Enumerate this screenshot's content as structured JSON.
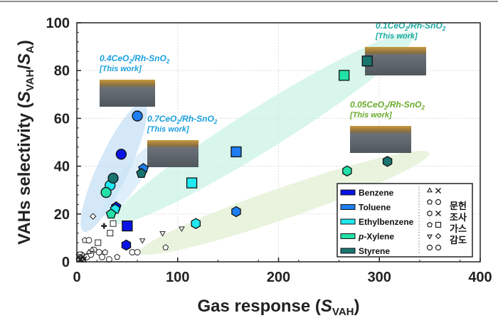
{
  "chart_data": {
    "type": "scatter",
    "xlabel": "Gas response (S_VAH)",
    "xlabel_main": "Gas response (",
    "xlabel_sym": "S",
    "xlabel_sub": "VAH",
    "xlabel_close": ")",
    "ylabel_main": "VAHs selectivity (",
    "ylabel_sym1": "S",
    "ylabel_sub1": "VAH",
    "ylabel_slash": "/",
    "ylabel_sym2": "S",
    "ylabel_sub2": "A",
    "ylabel_close": ")",
    "xlim": [
      0,
      400
    ],
    "ylim": [
      0,
      100
    ],
    "xticks": [
      "0",
      "100",
      "200",
      "300",
      "400"
    ],
    "yticks": [
      "0",
      "20",
      "40",
      "60",
      "80",
      "100"
    ],
    "grid": true,
    "gases": [
      {
        "name": "Benzene",
        "color": "#0a14e6"
      },
      {
        "name": "Toluene",
        "color": "#1e7ef0"
      },
      {
        "name": "Ethylbenzene",
        "color": "#1ee8f0"
      },
      {
        "name": "p-Xylene",
        "color": "#22e0a8"
      },
      {
        "name": "Styrene",
        "color": "#1a7470"
      }
    ],
    "legend_italic_prefix": "p",
    "legend_rest": "-Xylene",
    "literature_label": [
      "문헌",
      "조사",
      "가스",
      "감도"
    ],
    "series": [
      {
        "name": "0.4CeO2/Rh-SnO2 [This work]",
        "label1": "0.4CeO",
        "label2": "/Rh-SnO",
        "label3": "[This work]",
        "color": "#1aa0e0",
        "marker": "circle",
        "points": [
          [
            44,
            45
          ],
          [
            60,
            61
          ],
          [
            33,
            32
          ],
          [
            29,
            29
          ],
          [
            36,
            35
          ]
        ]
      },
      {
        "name": "0.7CeO2/Rh-SnO2 [This work]",
        "label1": "0.7CeO",
        "label2": "/Rh-SnO",
        "label3": "[This work]",
        "color": "#1aa0e0",
        "marker": "pentagon",
        "points": [
          [
            39,
            23
          ],
          [
            66,
            39
          ],
          [
            38,
            22
          ],
          [
            34,
            20
          ],
          [
            64,
            37
          ]
        ]
      },
      {
        "name": "0.1CeO2/Rh-SnO2 [This work]",
        "label1": "0.1CeO",
        "label2": "/Rh-SnO",
        "label3": "[This work]",
        "color": "#1aa8a0",
        "marker": "square",
        "points": [
          [
            50,
            15
          ],
          [
            158,
            46
          ],
          [
            114,
            33
          ],
          [
            265,
            78
          ],
          [
            288,
            84
          ]
        ]
      },
      {
        "name": "0.05CeO2/Rh-SnO2 [This work]",
        "label1": "0.05CeO",
        "label2": "/Rh-SnO",
        "label3": "[This work]",
        "color": "#6aaa2a",
        "marker": "hexagon",
        "points": [
          [
            49,
            7
          ],
          [
            158,
            21
          ],
          [
            118,
            16
          ],
          [
            268,
            38
          ],
          [
            308,
            42
          ]
        ]
      }
    ],
    "literature": [
      {
        "marker": "diamond",
        "points": [
          [
            16,
            19
          ]
        ]
      },
      {
        "marker": "plus",
        "points": [
          [
            27,
            15
          ]
        ]
      },
      {
        "marker": "square",
        "points": [
          [
            36,
            16
          ],
          [
            33,
            12
          ],
          [
            21,
            8
          ]
        ]
      },
      {
        "marker": "triangle-down",
        "points": [
          [
            65,
            9
          ],
          [
            85,
            12
          ],
          [
            104,
            14
          ]
        ]
      },
      {
        "marker": "pentagon",
        "points": [
          [
            88,
            6
          ],
          [
            28,
            4
          ],
          [
            8,
            9
          ],
          [
            5,
            3
          ],
          [
            40,
            2
          ]
        ]
      },
      {
        "marker": "circle",
        "points": [
          [
            55,
            4
          ],
          [
            60,
            4
          ],
          [
            12,
            9
          ],
          [
            17,
            5
          ],
          [
            22,
            4
          ],
          [
            10,
            2
          ],
          [
            3,
            3
          ],
          [
            6,
            1
          ],
          [
            14,
            3
          ],
          [
            25,
            2
          ],
          [
            32,
            1
          ]
        ]
      },
      {
        "marker": "triangle",
        "points": [
          [
            15,
            5
          ],
          [
            12,
            4
          ],
          [
            2,
            2
          ]
        ]
      },
      {
        "marker": "star",
        "points": [
          [
            2,
            2
          ],
          [
            4,
            1
          ],
          [
            6,
            2
          ],
          [
            3,
            1
          ],
          [
            7,
            1
          ]
        ]
      }
    ]
  }
}
